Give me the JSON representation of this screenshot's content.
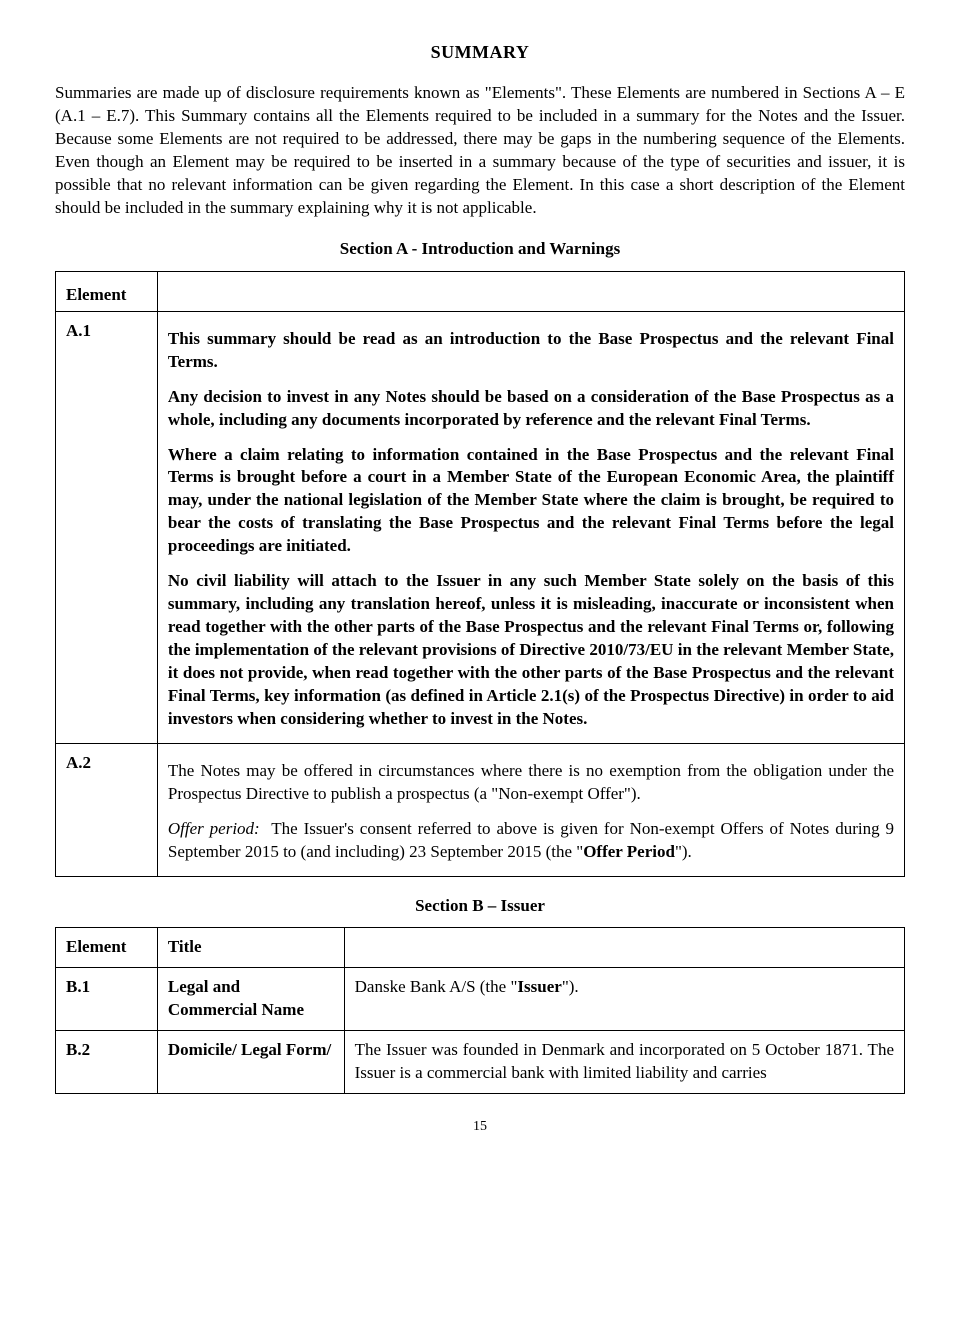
{
  "title": "SUMMARY",
  "intro": "Summaries are made up of disclosure requirements known as \"Elements\". These Elements are numbered in Sections A – E (A.1 – E.7). This Summary contains all the Elements required to be included in a summary for the Notes and the Issuer. Because some Elements are not required to be addressed, there may be gaps in the numbering sequence of the Elements. Even though an Element may be required to be inserted in a summary because of the type of securities and issuer, it is possible that no relevant information can be given regarding the Element. In this case a short description of the Element should be included in the summary explaining why it is not applicable.",
  "sectionA": {
    "header": "Section A - Introduction and Warnings",
    "colElement": "Element",
    "rows": [
      {
        "id": "A.1",
        "paras": [
          "This summary should be read as an introduction to the Base Prospectus and the relevant Final Terms.",
          "Any decision to invest in any Notes should be based on a consideration of the Base Prospectus as a whole, including any documents incorporated by reference and the relevant Final Terms.",
          "Where a claim relating to information contained in the Base Prospectus and the relevant Final Terms is brought before a court in a Member State of the European Economic Area, the plaintiff may, under the national legislation of the Member State where the claim is brought, be required to bear the costs of translating the Base Prospectus and the relevant Final Terms before the legal proceedings are initiated.",
          "No civil liability will attach to the Issuer in any such Member State solely on the basis of this summary, including any translation hereof, unless it is misleading, inaccurate or inconsistent when read together with the other parts of the Base Prospectus and the relevant Final Terms or, following the implementation of the relevant provisions of Directive 2010/73/EU in the relevant Member State, it does not provide, when read together with the other parts of the Base Prospectus and the relevant Final Terms, key information (as defined in Article 2.1(s) of the Prospectus Directive) in order to aid investors when considering whether to invest in the Notes."
        ],
        "bold": true
      },
      {
        "id": "A.2",
        "paras": [
          "The Notes may be offered in circumstances where there is no exemption from the obligation under the Prospectus Directive to publish a prospectus (a \"Non-exempt Offer\").",
          "Offer period:  The Issuer's consent referred to above is given for Non-exempt Offers of Notes during 9 September 2015 to (and including) 23 September 2015 (the \"Offer Period\")."
        ],
        "bold": false
      }
    ]
  },
  "sectionB": {
    "header": "Section B – Issuer",
    "colElement": "Element",
    "colTitle": "Title",
    "rows": [
      {
        "id": "B.1",
        "title": "Legal and Commercial Name",
        "desc": "Danske Bank A/S (the \"Issuer\")."
      },
      {
        "id": "B.2",
        "title": "Domicile/ Legal Form/",
        "desc": "The Issuer was founded in Denmark and incorporated on 5 October 1871. The Issuer is a commercial bank with limited liability and carries"
      }
    ]
  },
  "pageNumber": "15"
}
